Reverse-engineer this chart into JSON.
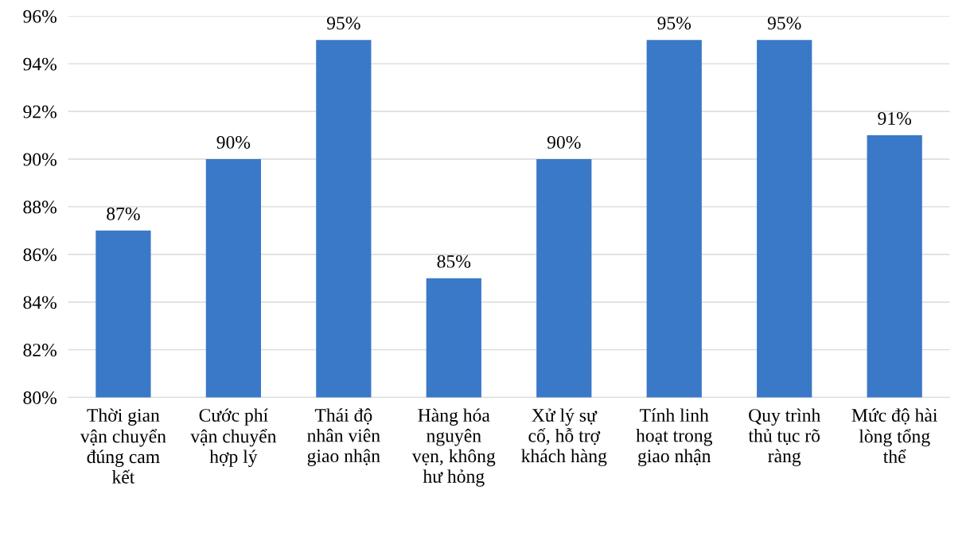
{
  "chart_data": {
    "type": "bar",
    "categories": [
      "Thời gian\nvận chuyển\nđúng cam\nkết",
      "Cước phí\nvận chuyển\nhợp lý",
      "Thái độ\nnhân viên\ngiao nhận",
      "Hàng hóa\nnguyên\nvẹn, không\như hỏng",
      "Xử lý sự\ncố, hỗ trợ\nkhách hàng",
      "Tính linh\nhoạt trong\ngiao nhận",
      "Quy trình\nthủ tục rõ\nràng",
      "Mức độ hài\nlòng tổng\nthể"
    ],
    "values": [
      87,
      90,
      95,
      85,
      90,
      95,
      95,
      91
    ],
    "value_labels": [
      "87%",
      "90%",
      "95%",
      "85%",
      "90%",
      "95%",
      "95%",
      "91%"
    ],
    "color": "#3a78c8",
    "ylim": [
      80,
      96
    ],
    "yticks": [
      {
        "value": 80,
        "label": "80%"
      },
      {
        "value": 82,
        "label": "82%"
      },
      {
        "value": 84,
        "label": "84%"
      },
      {
        "value": 86,
        "label": "86%"
      },
      {
        "value": 88,
        "label": "88%"
      },
      {
        "value": 90,
        "label": "90%"
      },
      {
        "value": 92,
        "label": "92%"
      },
      {
        "value": 94,
        "label": "94%"
      },
      {
        "value": 96,
        "label": "96%"
      }
    ],
    "grid": "y"
  }
}
